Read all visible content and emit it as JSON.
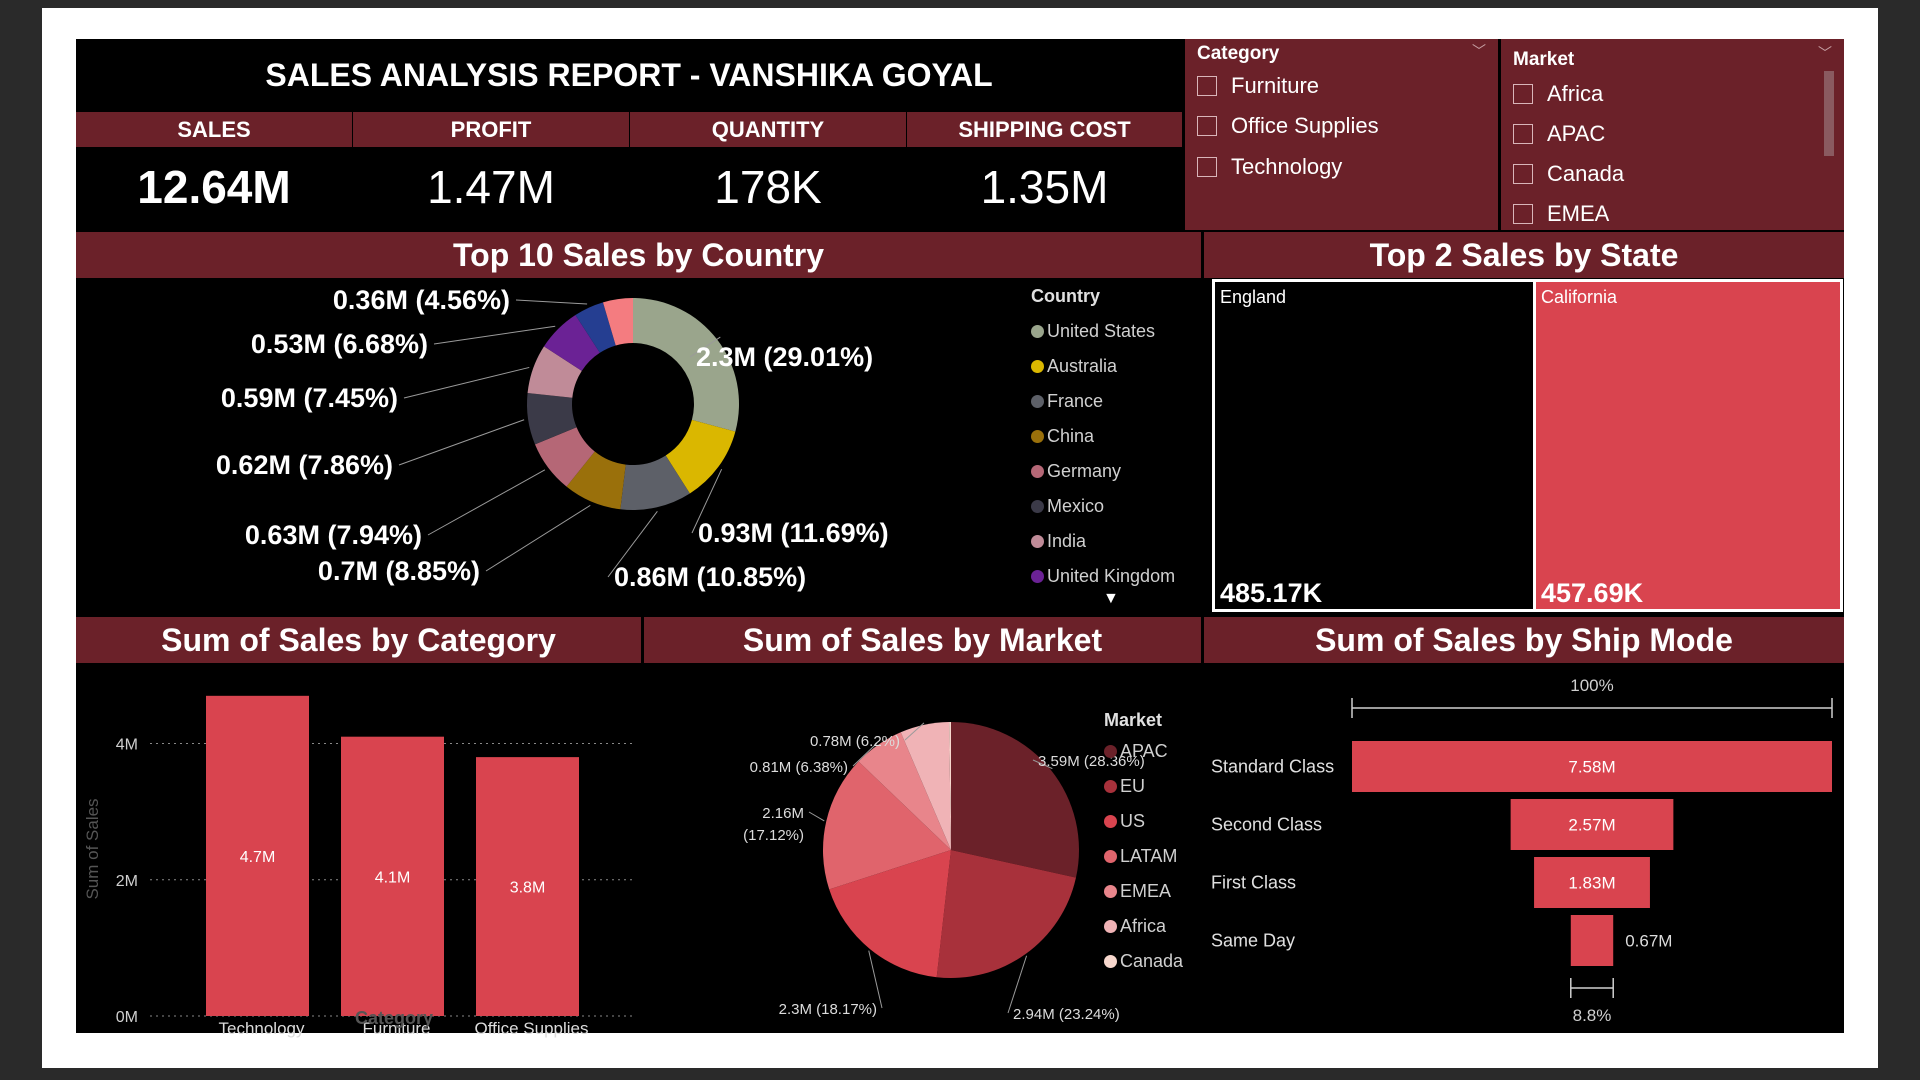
{
  "report": {
    "title": "SALES ANALYSIS REPORT - VANSHIKA GOYAL"
  },
  "kpis": [
    {
      "label": "SALES",
      "value": "12.64M"
    },
    {
      "label": "PROFIT",
      "value": "1.47M"
    },
    {
      "label": "QUANTITY",
      "value": "178K"
    },
    {
      "label": "SHIPPING COST",
      "value": "1.35M"
    }
  ],
  "slicers": {
    "category": {
      "title": "Category",
      "items": [
        "Furniture",
        "Office Supplies",
        "Technology"
      ]
    },
    "market": {
      "title": "Market",
      "items": [
        "Africa",
        "APAC",
        "Canada",
        "EMEA"
      ]
    }
  },
  "sections": {
    "country": "Top 10 Sales by Country",
    "state": "Top 2 Sales by State",
    "category": "Sum of Sales by Category",
    "market": "Sum of Sales by Market",
    "shipmode": "Sum of Sales by Ship Mode"
  },
  "colors": {
    "maroon": "#6b2129",
    "red": "#d9444f",
    "united_states": "#9aa58c",
    "australia": "#dab700",
    "france": "#5d6068",
    "china": "#9a700b",
    "germany": "#b56776",
    "mexico": "#3b3a48",
    "india": "#c08b98",
    "united_kingdom": "#6b2295",
    "ninth": "#253e91",
    "tenth": "#f47c80"
  },
  "chart_data": [
    {
      "type": "pie",
      "variant": "donut",
      "legend_title": "Country",
      "categories": [
        "United States",
        "Australia",
        "France",
        "China",
        "Germany",
        "Mexico",
        "India",
        "United Kingdom",
        "",
        ""
      ],
      "legend_items": [
        "United States",
        "Australia",
        "France",
        "China",
        "Germany",
        "Mexico",
        "India",
        "United Kingdom"
      ],
      "values": [
        2.3,
        0.93,
        0.86,
        0.7,
        0.63,
        0.62,
        0.59,
        0.53,
        0.36,
        0.36
      ],
      "labels": [
        "2.3M (29.01%)",
        "0.93M (11.69%)",
        "0.86M (10.85%)",
        "0.7M (8.85%)",
        "0.63M (7.94%)",
        "0.62M (7.86%)",
        "0.59M (7.45%)",
        "0.53M (6.68%)",
        "0.36M (4.56%)",
        ""
      ],
      "percents": [
        29.01,
        11.69,
        10.85,
        8.85,
        7.94,
        7.86,
        7.45,
        6.68,
        4.56,
        4.56
      ],
      "legend_position": "right"
    },
    {
      "type": "heatmap",
      "variant": "treemap",
      "categories": [
        "England",
        "California"
      ],
      "values": [
        485.17,
        457.69
      ],
      "labels": [
        "485.17K",
        "457.69K"
      ]
    },
    {
      "type": "bar",
      "categories": [
        "Technology",
        "Furniture",
        "Office Supplies"
      ],
      "values": [
        4.7,
        4.1,
        3.8
      ],
      "labels": [
        "4.7M",
        "4.1M",
        "3.8M"
      ],
      "xlabel": "Category",
      "ylabel": "Sum of Sales",
      "ylim": [
        0,
        4.8
      ],
      "yticks": [
        "0M",
        "2M",
        "4M"
      ],
      "ytick_values": [
        0,
        2,
        4
      ],
      "grid": true
    },
    {
      "type": "pie",
      "legend_title": "Market",
      "categories": [
        "APAC",
        "EU",
        "US",
        "LATAM",
        "EMEA",
        "Africa",
        "Canada"
      ],
      "values": [
        3.59,
        2.94,
        2.3,
        2.16,
        0.81,
        0.78,
        0.03
      ],
      "percents": [
        28.36,
        23.24,
        18.17,
        17.12,
        6.38,
        6.2,
        0.53
      ],
      "labels": [
        "3.59M (28.36%)",
        "2.94M (23.24%)",
        "2.3M (18.17%)",
        "2.16M",
        "0.81M (6.38%)",
        "0.78M (6.2%)",
        ""
      ],
      "label_extra": "(17.12%)",
      "colors": [
        "#6b2129",
        "#a8313b",
        "#d9444f",
        "#e0646c",
        "#e8858b",
        "#f0b3b6",
        "#f7d7cd"
      ],
      "legend_position": "right"
    },
    {
      "type": "bar",
      "variant": "funnel",
      "categories": [
        "Standard Class",
        "Second Class",
        "First Class",
        "Same Day"
      ],
      "values": [
        7.58,
        2.57,
        1.83,
        0.67
      ],
      "labels": [
        "7.58M",
        "2.57M",
        "1.83M",
        "0.67M"
      ],
      "top_percent": "100%",
      "bottom_percent": "8.8%"
    }
  ]
}
